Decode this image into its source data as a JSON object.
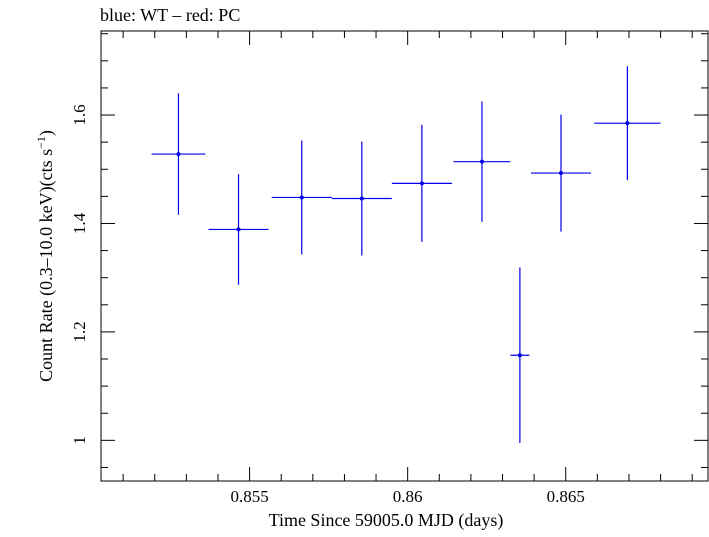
{
  "chart_data": {
    "type": "scatter",
    "title": "blue: WT – red: PC",
    "xlabel": "Time Since 59005.0 MJD (days)",
    "ylabel_main": "Count Rate (0.3–10.0 keV)(cts s",
    "ylabel_sup": "−1",
    "ylabel_close": ")",
    "xlim": [
      0.8503,
      0.8695
    ],
    "ylim": [
      0.925,
      1.755
    ],
    "x_ticks": [
      {
        "value": 0.855,
        "label": "0.855"
      },
      {
        "value": 0.86,
        "label": "0.86"
      },
      {
        "value": 0.865,
        "label": "0.865"
      }
    ],
    "y_ticks": [
      {
        "value": 1.0,
        "label": "1"
      },
      {
        "value": 1.2,
        "label": "1.2"
      },
      {
        "value": 1.4,
        "label": "1.4"
      },
      {
        "value": 1.6,
        "label": "1.6"
      }
    ],
    "grid": false,
    "series": [
      {
        "color": "#0000ee",
        "points": [
          {
            "x": 0.85275,
            "xerr": 0.00085,
            "y": 1.528,
            "yerr": 0.112
          },
          {
            "x": 0.85465,
            "xerr": 0.00095,
            "y": 1.389,
            "yerr": 0.102
          },
          {
            "x": 0.85665,
            "xerr": 0.00095,
            "y": 1.448,
            "yerr": 0.105
          },
          {
            "x": 0.85855,
            "xerr": 0.00095,
            "y": 1.446,
            "yerr": 0.105
          },
          {
            "x": 0.86045,
            "xerr": 0.00095,
            "y": 1.474,
            "yerr": 0.108
          },
          {
            "x": 0.86235,
            "xerr": 0.0009,
            "y": 1.514,
            "yerr": 0.111
          },
          {
            "x": 0.86355,
            "xerr": 0.0003,
            "y": 1.157,
            "yerr": 0.162
          },
          {
            "x": 0.86485,
            "xerr": 0.00095,
            "y": 1.493,
            "yerr": 0.108
          },
          {
            "x": 0.86695,
            "xerr": 0.00105,
            "y": 1.585,
            "yerr": 0.105
          }
        ]
      }
    ]
  }
}
